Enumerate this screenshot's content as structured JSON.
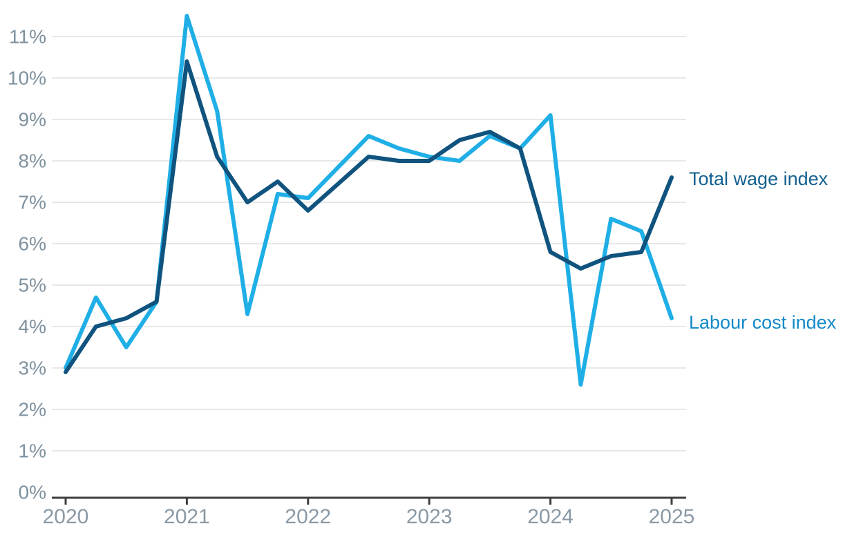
{
  "chart_data": {
    "type": "line",
    "title": "",
    "xlabel": "",
    "ylabel": "",
    "categories": [
      "2020 Q1",
      "2020 Q2",
      "2020 Q3",
      "2020 Q4",
      "2021 Q1",
      "2021 Q2",
      "2021 Q3",
      "2021 Q4",
      "2022 Q1",
      "2022 Q2",
      "2022 Q3",
      "2022 Q4",
      "2023 Q1",
      "2023 Q2",
      "2023 Q3",
      "2023 Q4",
      "2024 Q1",
      "2024 Q2",
      "2024 Q3",
      "2024 Q4",
      "2025 Q1"
    ],
    "series": [
      {
        "name": "Total wage index",
        "color": "#0f537e",
        "label_color": "#14608f",
        "values": [
          2.9,
          4.0,
          4.2,
          4.6,
          10.4,
          8.1,
          7.0,
          7.5,
          6.8,
          7.45,
          8.1,
          8.0,
          8.0,
          8.5,
          8.7,
          8.3,
          5.8,
          5.4,
          5.7,
          5.8,
          7.6
        ]
      },
      {
        "name": "Labour cost index",
        "color": "#1fafe6",
        "label_color": "#1389c9",
        "values": [
          3.0,
          4.7,
          3.5,
          4.6,
          11.5,
          9.2,
          4.3,
          7.2,
          7.1,
          7.85,
          8.6,
          8.3,
          8.1,
          8.0,
          8.6,
          8.3,
          9.1,
          2.6,
          6.6,
          6.3,
          4.2
        ]
      }
    ],
    "xticks": [
      {
        "label": "2020",
        "quarter_index": 0
      },
      {
        "label": "2021",
        "quarter_index": 4
      },
      {
        "label": "2022",
        "quarter_index": 8
      },
      {
        "label": "2023",
        "quarter_index": 12
      },
      {
        "label": "2024",
        "quarter_index": 16
      },
      {
        "label": "2025",
        "quarter_index": 20
      }
    ],
    "yticks": [
      {
        "value": 0,
        "label": "0%"
      },
      {
        "value": 1,
        "label": "1%"
      },
      {
        "value": 2,
        "label": "2%"
      },
      {
        "value": 3,
        "label": "3%"
      },
      {
        "value": 4,
        "label": "4%"
      },
      {
        "value": 5,
        "label": "5%"
      },
      {
        "value": 6,
        "label": "6%"
      },
      {
        "value": 7,
        "label": "7%"
      },
      {
        "value": 8,
        "label": "8%"
      },
      {
        "value": 9,
        "label": "9%"
      },
      {
        "value": 10,
        "label": "10%"
      },
      {
        "value": 11,
        "label": "11%"
      }
    ],
    "ylim": [
      0,
      11.6
    ],
    "grid": true,
    "legend_position": "line-end-labels-right",
    "colors": {
      "gridline": "#e8e8e8",
      "axis": "#3f3f3f",
      "ytick_text": "#7f919e",
      "xtick_text": "#8a99a5"
    }
  }
}
